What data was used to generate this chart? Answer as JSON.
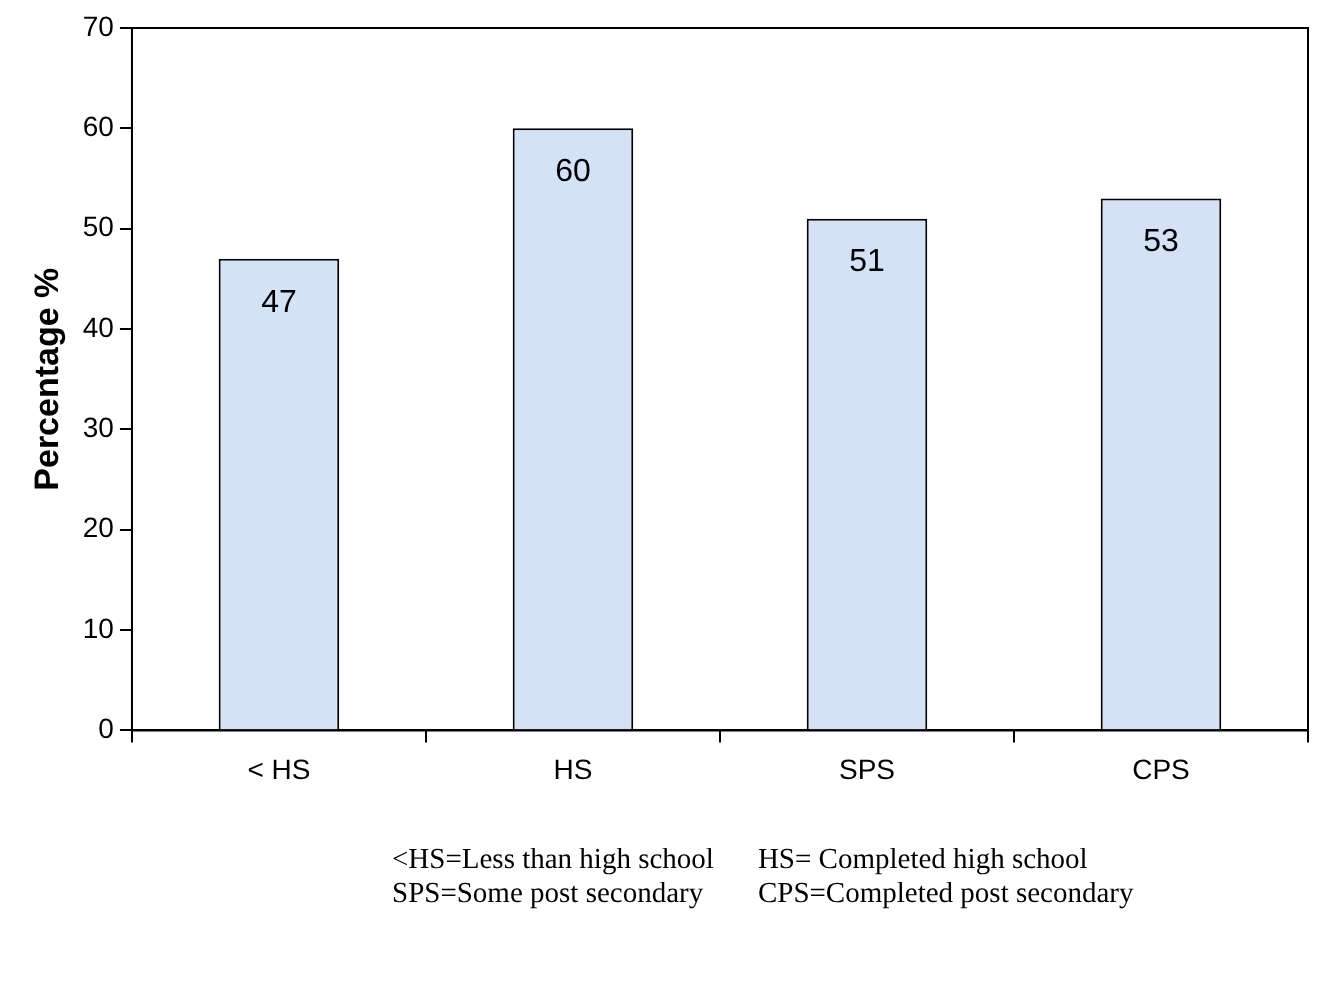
{
  "chart_data": {
    "type": "bar",
    "ylabel": "Percentage %",
    "categories": [
      "< HS",
      "HS",
      "SPS",
      "CPS"
    ],
    "values": [
      47,
      60,
      51,
      53
    ],
    "color": "#d3e2f4",
    "ylim": [
      0,
      70
    ],
    "yticks": [
      0,
      10,
      20,
      30,
      40,
      50,
      60,
      70
    ],
    "grid": false,
    "legend": false,
    "data_labels": true,
    "annotations": [
      "<HS=Less than high school",
      "HS= Completed high school",
      "SPS=Some post secondary",
      "CPS=Completed post secondary"
    ]
  }
}
